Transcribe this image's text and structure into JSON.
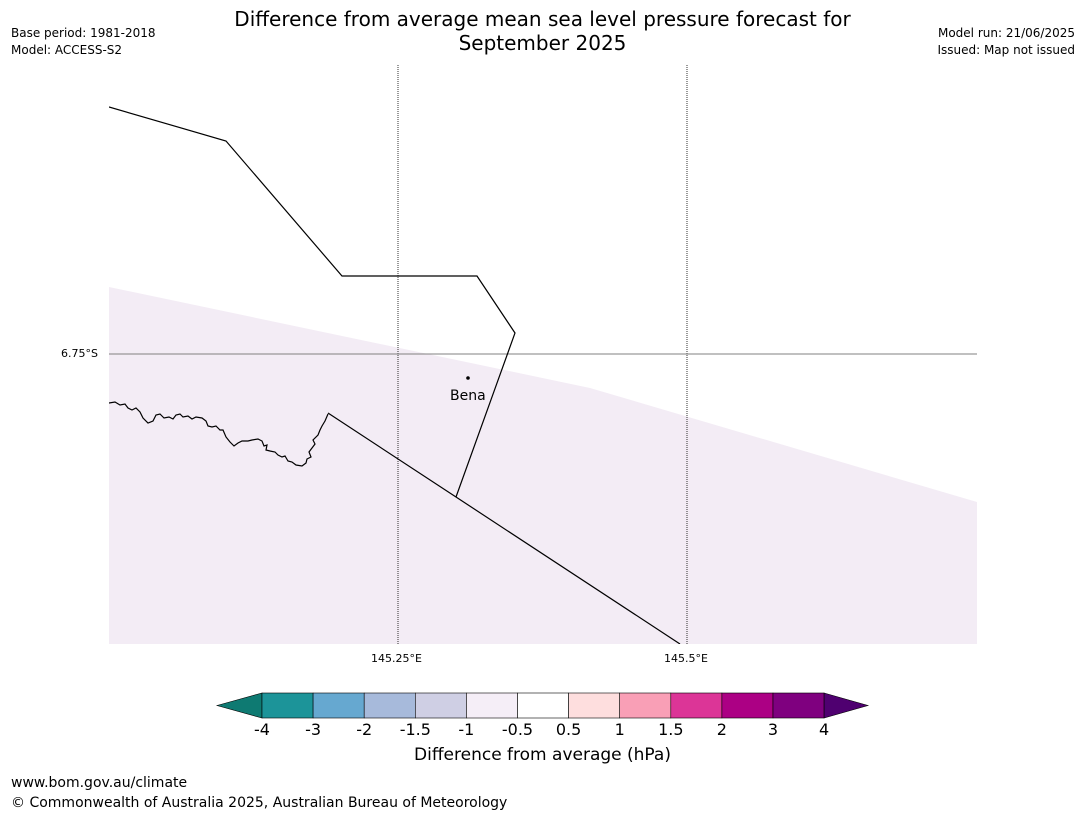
{
  "header": {
    "title_line1": "Difference from average mean sea level pressure forecast for",
    "title_line2": "September 2025",
    "base_period": "Base period: 1981-2018",
    "model": "Model: ACCESS-S2",
    "model_run": "Model run: 21/06/2025",
    "issued": "Issued: Map not issued"
  },
  "map": {
    "lat_label": "6.75°S",
    "lon_labels": [
      "145.25°E",
      "145.5°E"
    ],
    "place": "Bena"
  },
  "colorbar": {
    "ticks": [
      "-4",
      "-3",
      "-2",
      "-1.5",
      "-1",
      "-0.5",
      "0.5",
      "1",
      "1.5",
      "2",
      "3",
      "4"
    ],
    "colors": [
      "#0e7a72",
      "#1c9499",
      "#66a8d0",
      "#a7badb",
      "#cfcfe4",
      "#f5eef7",
      "#ffffff",
      "#fedede",
      "#f99fb6",
      "#dc3597",
      "#ac0084",
      "#7f007f",
      "#4f0070"
    ],
    "label": "Difference from average (hPa)"
  },
  "footer": {
    "url": "www.bom.gov.au/climate",
    "copyright": "© Commonwealth of Australia 2025, Australian Bureau of Meteorology"
  }
}
